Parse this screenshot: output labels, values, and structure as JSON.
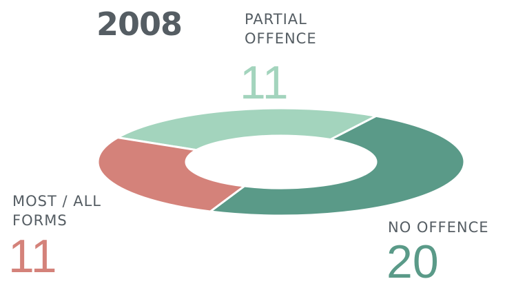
{
  "chart_data": {
    "type": "donut",
    "title": "2008",
    "categories": [
      "PARTIAL OFFENCE",
      "NO OFFENCE",
      "MOST / ALL FORMS"
    ],
    "values": [
      11,
      20,
      11
    ],
    "colors": [
      "#a3d4bd",
      "#5a9a88",
      "#d4827a"
    ]
  }
}
